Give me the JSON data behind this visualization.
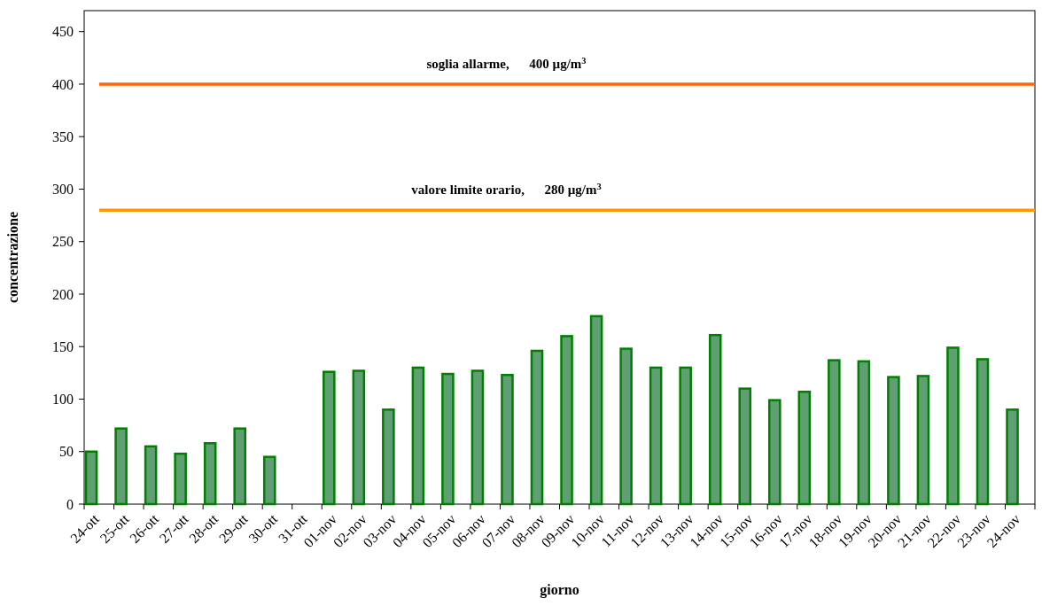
{
  "chart_data": {
    "type": "bar",
    "xlabel": "giorno",
    "ylabel": "concentrazione",
    "categories": [
      "24-ott",
      "25-ott",
      "26-ott",
      "27-ott",
      "28-ott",
      "29-ott",
      "30-ott",
      "31-ott",
      "01-nov",
      "02-nov",
      "03-nov",
      "04-nov",
      "05-nov",
      "06-nov",
      "07-nov",
      "08-nov",
      "09-nov",
      "10-nov",
      "11-nov",
      "12-nov",
      "13-nov",
      "14-nov",
      "15-nov",
      "16-nov",
      "17-nov",
      "18-nov",
      "19-nov",
      "20-nov",
      "21-nov",
      "22-nov",
      "23-nov",
      "24-nov"
    ],
    "values": [
      50,
      72,
      55,
      48,
      58,
      72,
      45,
      null,
      126,
      127,
      90,
      130,
      124,
      127,
      123,
      146,
      160,
      179,
      148,
      130,
      130,
      161,
      110,
      99,
      107,
      137,
      136,
      121,
      122,
      149,
      138,
      90
    ],
    "color": "#008000",
    "ylim": [
      0,
      470
    ],
    "yticks": [
      0,
      50,
      100,
      150,
      200,
      250,
      300,
      350,
      400,
      450
    ],
    "ref_lines": [
      {
        "axis": "y",
        "value": 400,
        "label": "soglia allarme,      400 µg/m$^{3}$",
        "color": "#ff6600"
      },
      {
        "axis": "y",
        "value": 280,
        "label": "valore limite orario,      280 µg/m$^{3}$",
        "color": "#ff9900"
      }
    ],
    "grid": false
  }
}
